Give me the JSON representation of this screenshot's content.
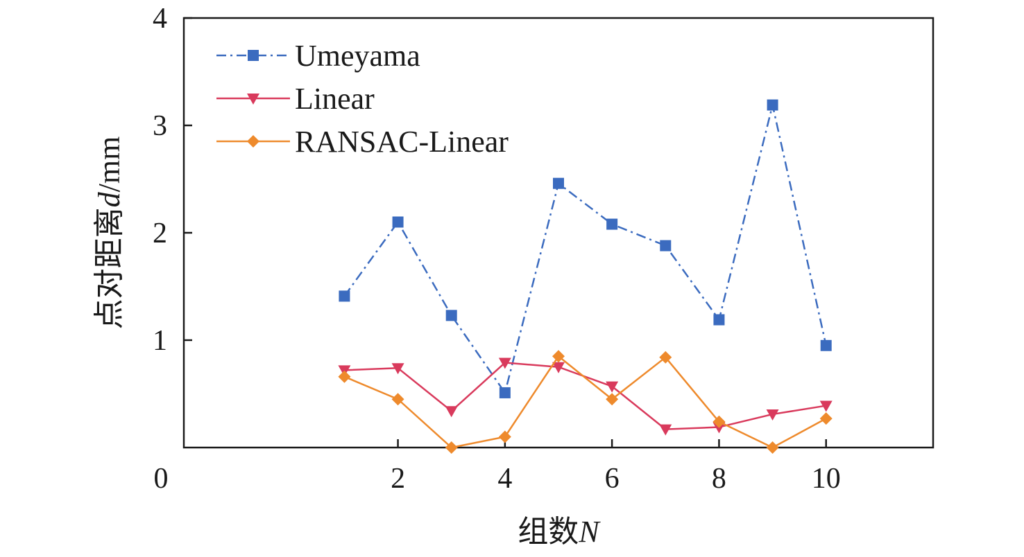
{
  "chart_data": {
    "type": "line",
    "title": "",
    "xlabel": "组数",
    "xlabel_var": "N",
    "ylabel": "点对距离",
    "ylabel_var": "d",
    "ylabel_unit": "/mm",
    "xlim": [
      -2,
      12
    ],
    "ylim": [
      0,
      4
    ],
    "xticks": [
      0,
      2,
      4,
      6,
      8,
      10
    ],
    "yticks": [
      1,
      2,
      3,
      4
    ],
    "x": [
      1,
      2,
      3,
      4,
      5,
      6,
      7,
      8,
      9,
      10
    ],
    "grid": false,
    "legend_position": "top-left",
    "series": [
      {
        "name": "Umeyama",
        "color": "#3b6bbf",
        "line_style": "dash-dot",
        "marker": "square",
        "values": [
          1.41,
          2.1,
          1.23,
          0.51,
          2.46,
          2.08,
          1.88,
          1.19,
          3.19,
          0.95
        ]
      },
      {
        "name": "Linear",
        "color": "#d93a5c",
        "line_style": "solid",
        "marker": "triangle-down",
        "values": [
          0.72,
          0.74,
          0.34,
          0.79,
          0.75,
          0.57,
          0.17,
          0.19,
          0.31,
          0.39
        ]
      },
      {
        "name": "RANSAC-Linear",
        "color": "#ee8a2c",
        "line_style": "solid",
        "marker": "diamond",
        "values": [
          0.66,
          0.45,
          0.0,
          0.1,
          0.85,
          0.45,
          0.84,
          0.24,
          0.0,
          0.27
        ]
      }
    ]
  }
}
